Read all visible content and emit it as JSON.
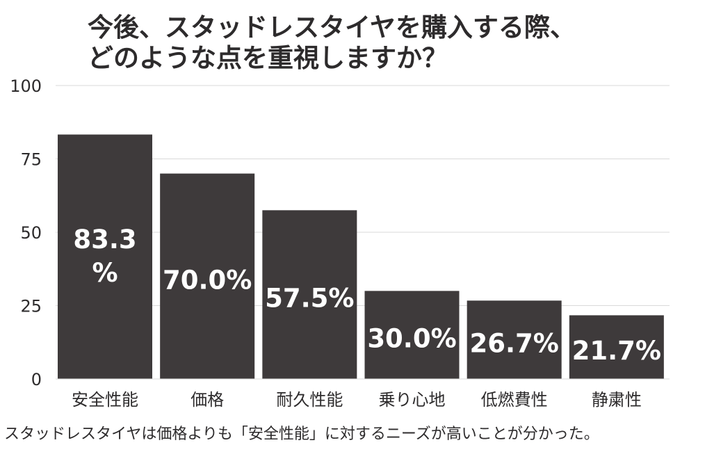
{
  "title_lines": [
    "今後、スタッドレスタイヤを購入する際、",
    "どのような点を重視しますか？"
  ],
  "caption": "スタッドレスタイヤは価格よりも「安全性能」に対するニーズが高いことが分かった。",
  "colors": {
    "bar": "#3e3a3b",
    "bar_label": "#ffffff",
    "text": "#2d2b2c",
    "grid": "#d9d9d9"
  },
  "chart_data": {
    "type": "bar",
    "categories": [
      "安全性能",
      "価格",
      "耐久性能",
      "乗り心地",
      "低燃費性",
      "静粛性"
    ],
    "values": [
      83.3,
      70.0,
      57.5,
      30.0,
      26.7,
      21.7
    ],
    "data_labels": [
      [
        "83.3",
        "%"
      ],
      [
        "70.0%"
      ],
      [
        "57.5%"
      ],
      [
        "30.0%"
      ],
      [
        "26.7%"
      ],
      [
        "21.7%"
      ]
    ],
    "yticks": [
      "0",
      "25",
      "50",
      "75",
      "100"
    ],
    "ylim": [
      0,
      100
    ],
    "grid": true,
    "legend": "none"
  }
}
